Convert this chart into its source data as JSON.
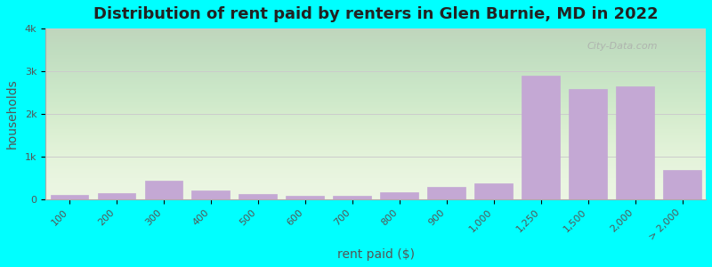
{
  "title": "Distribution of rent paid by renters in Glen Burnie, MD in 2022",
  "xlabel": "rent paid ($)",
  "ylabel": "households",
  "background_color": "#00ffff",
  "bar_color": "#c4a8d4",
  "bar_edge_color": "#c4a8d4",
  "categories": [
    "100",
    "200",
    "300",
    "400",
    "500",
    "600",
    "700",
    "800",
    "900",
    "1,000",
    "1,250",
    "1,500",
    "2,000",
    "> 2,000"
  ],
  "values": [
    100,
    155,
    430,
    200,
    130,
    80,
    80,
    170,
    300,
    380,
    2900,
    2580,
    2650,
    680
  ],
  "ylim": [
    0,
    4000
  ],
  "yticks": [
    0,
    1000,
    2000,
    3000,
    4000
  ],
  "ytick_labels": [
    "0",
    "1k",
    "2k",
    "3k",
    "4k"
  ],
  "title_fontsize": 13,
  "axis_label_fontsize": 10,
  "tick_fontsize": 8,
  "watermark_text": "City-Data.com"
}
